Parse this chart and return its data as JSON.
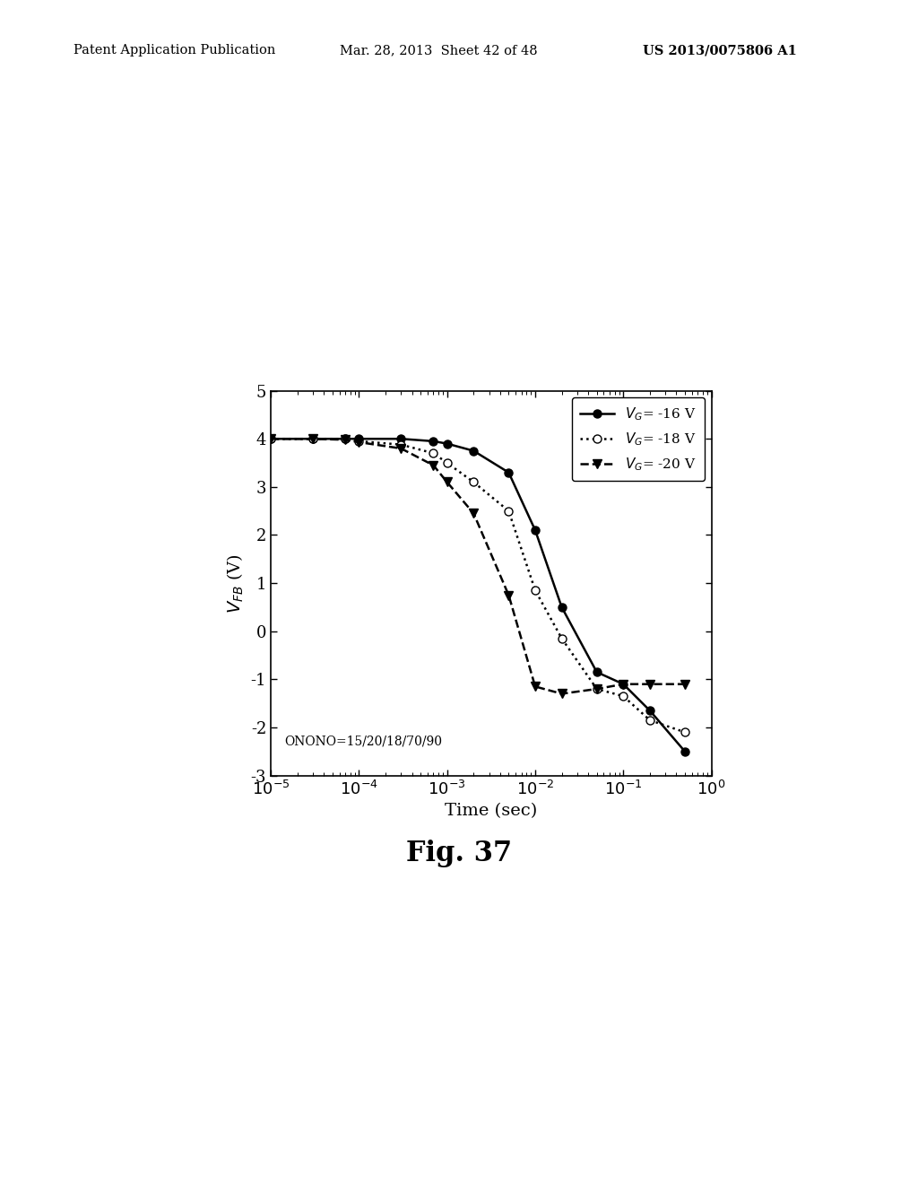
{
  "title_header": "Patent Application Publication",
  "title_date": "Mar. 28, 2013  Sheet 42 of 48",
  "title_patent": "US 2013/0075806 A1",
  "fig_label": "Fig. 37",
  "xlabel": "Time (sec)",
  "annotation": "ONONO=15/20/18/70/90",
  "ylim": [
    -3,
    5
  ],
  "yticks": [
    -3,
    -2,
    -1,
    0,
    1,
    2,
    3,
    4,
    5
  ],
  "series": [
    {
      "label_vg": "-16 V",
      "linestyle": "solid",
      "marker": "o",
      "filled": true,
      "x": [
        1e-05,
        3e-05,
        7e-05,
        0.0001,
        0.0003,
        0.0007,
        0.001,
        0.002,
        0.005,
        0.01,
        0.02,
        0.05,
        0.1,
        0.2,
        0.5
      ],
      "y": [
        4.0,
        4.0,
        4.0,
        4.0,
        4.0,
        3.95,
        3.9,
        3.75,
        3.3,
        2.1,
        0.5,
        -0.85,
        -1.1,
        -1.65,
        -2.5
      ]
    },
    {
      "label_vg": "-18 V",
      "linestyle": "dotted",
      "marker": "o",
      "filled": false,
      "x": [
        1e-05,
        3e-05,
        7e-05,
        0.0001,
        0.0003,
        0.0007,
        0.001,
        0.002,
        0.005,
        0.01,
        0.02,
        0.05,
        0.1,
        0.2,
        0.5
      ],
      "y": [
        4.0,
        4.0,
        4.0,
        3.95,
        3.88,
        3.7,
        3.5,
        3.1,
        2.5,
        0.85,
        -0.15,
        -1.2,
        -1.35,
        -1.85,
        -2.1
      ]
    },
    {
      "label_vg": "-20 V",
      "linestyle": "dashed",
      "marker": "v",
      "filled": true,
      "x": [
        1e-05,
        3e-05,
        7e-05,
        0.0001,
        0.0003,
        0.0007,
        0.001,
        0.002,
        0.005,
        0.01,
        0.02,
        0.05,
        0.1,
        0.2,
        0.5
      ],
      "y": [
        4.0,
        4.0,
        3.98,
        3.93,
        3.8,
        3.45,
        3.1,
        2.45,
        0.75,
        -1.15,
        -1.3,
        -1.2,
        -1.1,
        -1.1,
        -1.1
      ]
    }
  ],
  "background_color": "#ffffff",
  "header_font_size": 10.5,
  "fig_label_font_size": 22,
  "axis_font_size": 13,
  "label_font_size": 14,
  "legend_font_size": 11
}
